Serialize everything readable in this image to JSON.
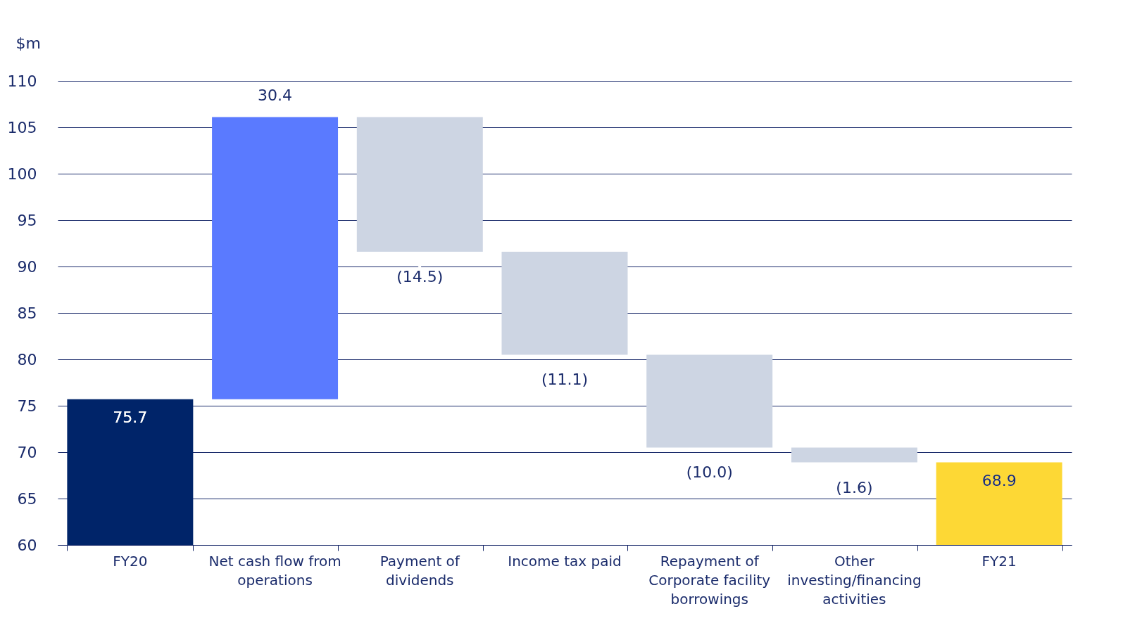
{
  "chart_data": {
    "type": "bar",
    "ylabel": "$m",
    "categories": [
      "FY20",
      "Net cash flow from operations",
      "Payment of dividends",
      "Income tax paid",
      "Repayment of Corporate facility borrowings",
      "Other investing/financing activities",
      "FY21"
    ],
    "base": [
      60,
      75.7,
      106.1,
      91.6,
      80.5,
      70.5,
      60
    ],
    "values": [
      15.7,
      30.4,
      -14.5,
      -11.1,
      -10.0,
      -1.6,
      8.9
    ],
    "value_labels": [
      "75.7",
      "30.4",
      "(14.5)",
      "(11.1)",
      "(10.0)",
      "(1.6)",
      "68.9"
    ],
    "colors": [
      "#002469",
      "#5a7aff",
      "#cdd5e3",
      "#cdd5e3",
      "#cdd5e3",
      "#cdd5e3",
      "#fdd835"
    ],
    "ylim": [
      60,
      110
    ],
    "yticks": [
      60,
      65,
      70,
      75,
      80,
      85,
      90,
      95,
      100,
      105,
      110
    ],
    "grid": "y"
  }
}
